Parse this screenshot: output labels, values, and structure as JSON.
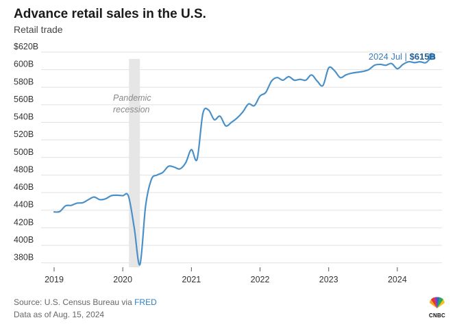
{
  "header": {
    "title": "Advance retail sales in the U.S.",
    "subtitle": "Retail trade"
  },
  "footer": {
    "source_prefix": "Source: U.S. Census Bureau via ",
    "source_link": "FRED",
    "data_as_of": "Data as of Aug. 15, 2024"
  },
  "logo": {
    "text": "CNBC"
  },
  "colors": {
    "line": "#4a90c8",
    "recession_band": "#e6e6e6",
    "accent_text": "#3a7bbd"
  },
  "chart_data": {
    "type": "line",
    "title": "Advance retail sales in the U.S.",
    "subtitle": "Retail trade",
    "xlabel": "",
    "ylabel": "",
    "unit": "billions of dollars",
    "xlim": [
      2019,
      2024.6
    ],
    "ylim": [
      375,
      620
    ],
    "y_ticks": [
      380,
      400,
      420,
      440,
      460,
      480,
      500,
      520,
      540,
      560,
      580,
      600,
      620
    ],
    "y_tick_labels": [
      "380B",
      "400B",
      "420B",
      "440B",
      "460B",
      "480B",
      "500B",
      "520B",
      "540B",
      "560B",
      "580B",
      "600B",
      "$620B"
    ],
    "x_ticks": [
      2019,
      2020,
      2021,
      2022,
      2023,
      2024
    ],
    "x_tick_labels": [
      "2019",
      "2020",
      "2021",
      "2022",
      "2023",
      "2024"
    ],
    "grid": "horizontal",
    "recession": {
      "start": 2020.09,
      "end": 2020.25,
      "label_line1": "Pandemic",
      "label_line2": "recession"
    },
    "latest": {
      "date": "2024 Jul",
      "value_label": "$615B",
      "value": 615
    },
    "series": [
      {
        "name": "Retail trade",
        "x": [
          2019.0,
          2019.083,
          2019.167,
          2019.25,
          2019.333,
          2019.417,
          2019.5,
          2019.583,
          2019.667,
          2019.75,
          2019.833,
          2019.917,
          2020.0,
          2020.083,
          2020.167,
          2020.25,
          2020.333,
          2020.417,
          2020.5,
          2020.583,
          2020.667,
          2020.75,
          2020.833,
          2020.917,
          2021.0,
          2021.083,
          2021.167,
          2021.25,
          2021.333,
          2021.417,
          2021.5,
          2021.583,
          2021.667,
          2021.75,
          2021.833,
          2021.917,
          2022.0,
          2022.083,
          2022.167,
          2022.25,
          2022.333,
          2022.417,
          2022.5,
          2022.583,
          2022.667,
          2022.75,
          2022.833,
          2022.917,
          2023.0,
          2023.083,
          2023.167,
          2023.25,
          2023.333,
          2023.417,
          2023.5,
          2023.583,
          2023.667,
          2023.75,
          2023.833,
          2023.917,
          2024.0,
          2024.083,
          2024.167,
          2024.25,
          2024.333,
          2024.417,
          2024.5
        ],
        "values": [
          438,
          438.5,
          445,
          445.5,
          448,
          448.5,
          452,
          455,
          452,
          453,
          456.5,
          457,
          456.5,
          456,
          420,
          378,
          445,
          475,
          480,
          483,
          490,
          489,
          487,
          494,
          509,
          498,
          550,
          554,
          543,
          547,
          536,
          540,
          545,
          552,
          561,
          559,
          570,
          574,
          587,
          591,
          588,
          592,
          588,
          589,
          588,
          594,
          587,
          582,
          602,
          599,
          591,
          594,
          596,
          597,
          598,
          600,
          605,
          606,
          605,
          607,
          601,
          606,
          609,
          608,
          609,
          608,
          615
        ]
      }
    ]
  }
}
